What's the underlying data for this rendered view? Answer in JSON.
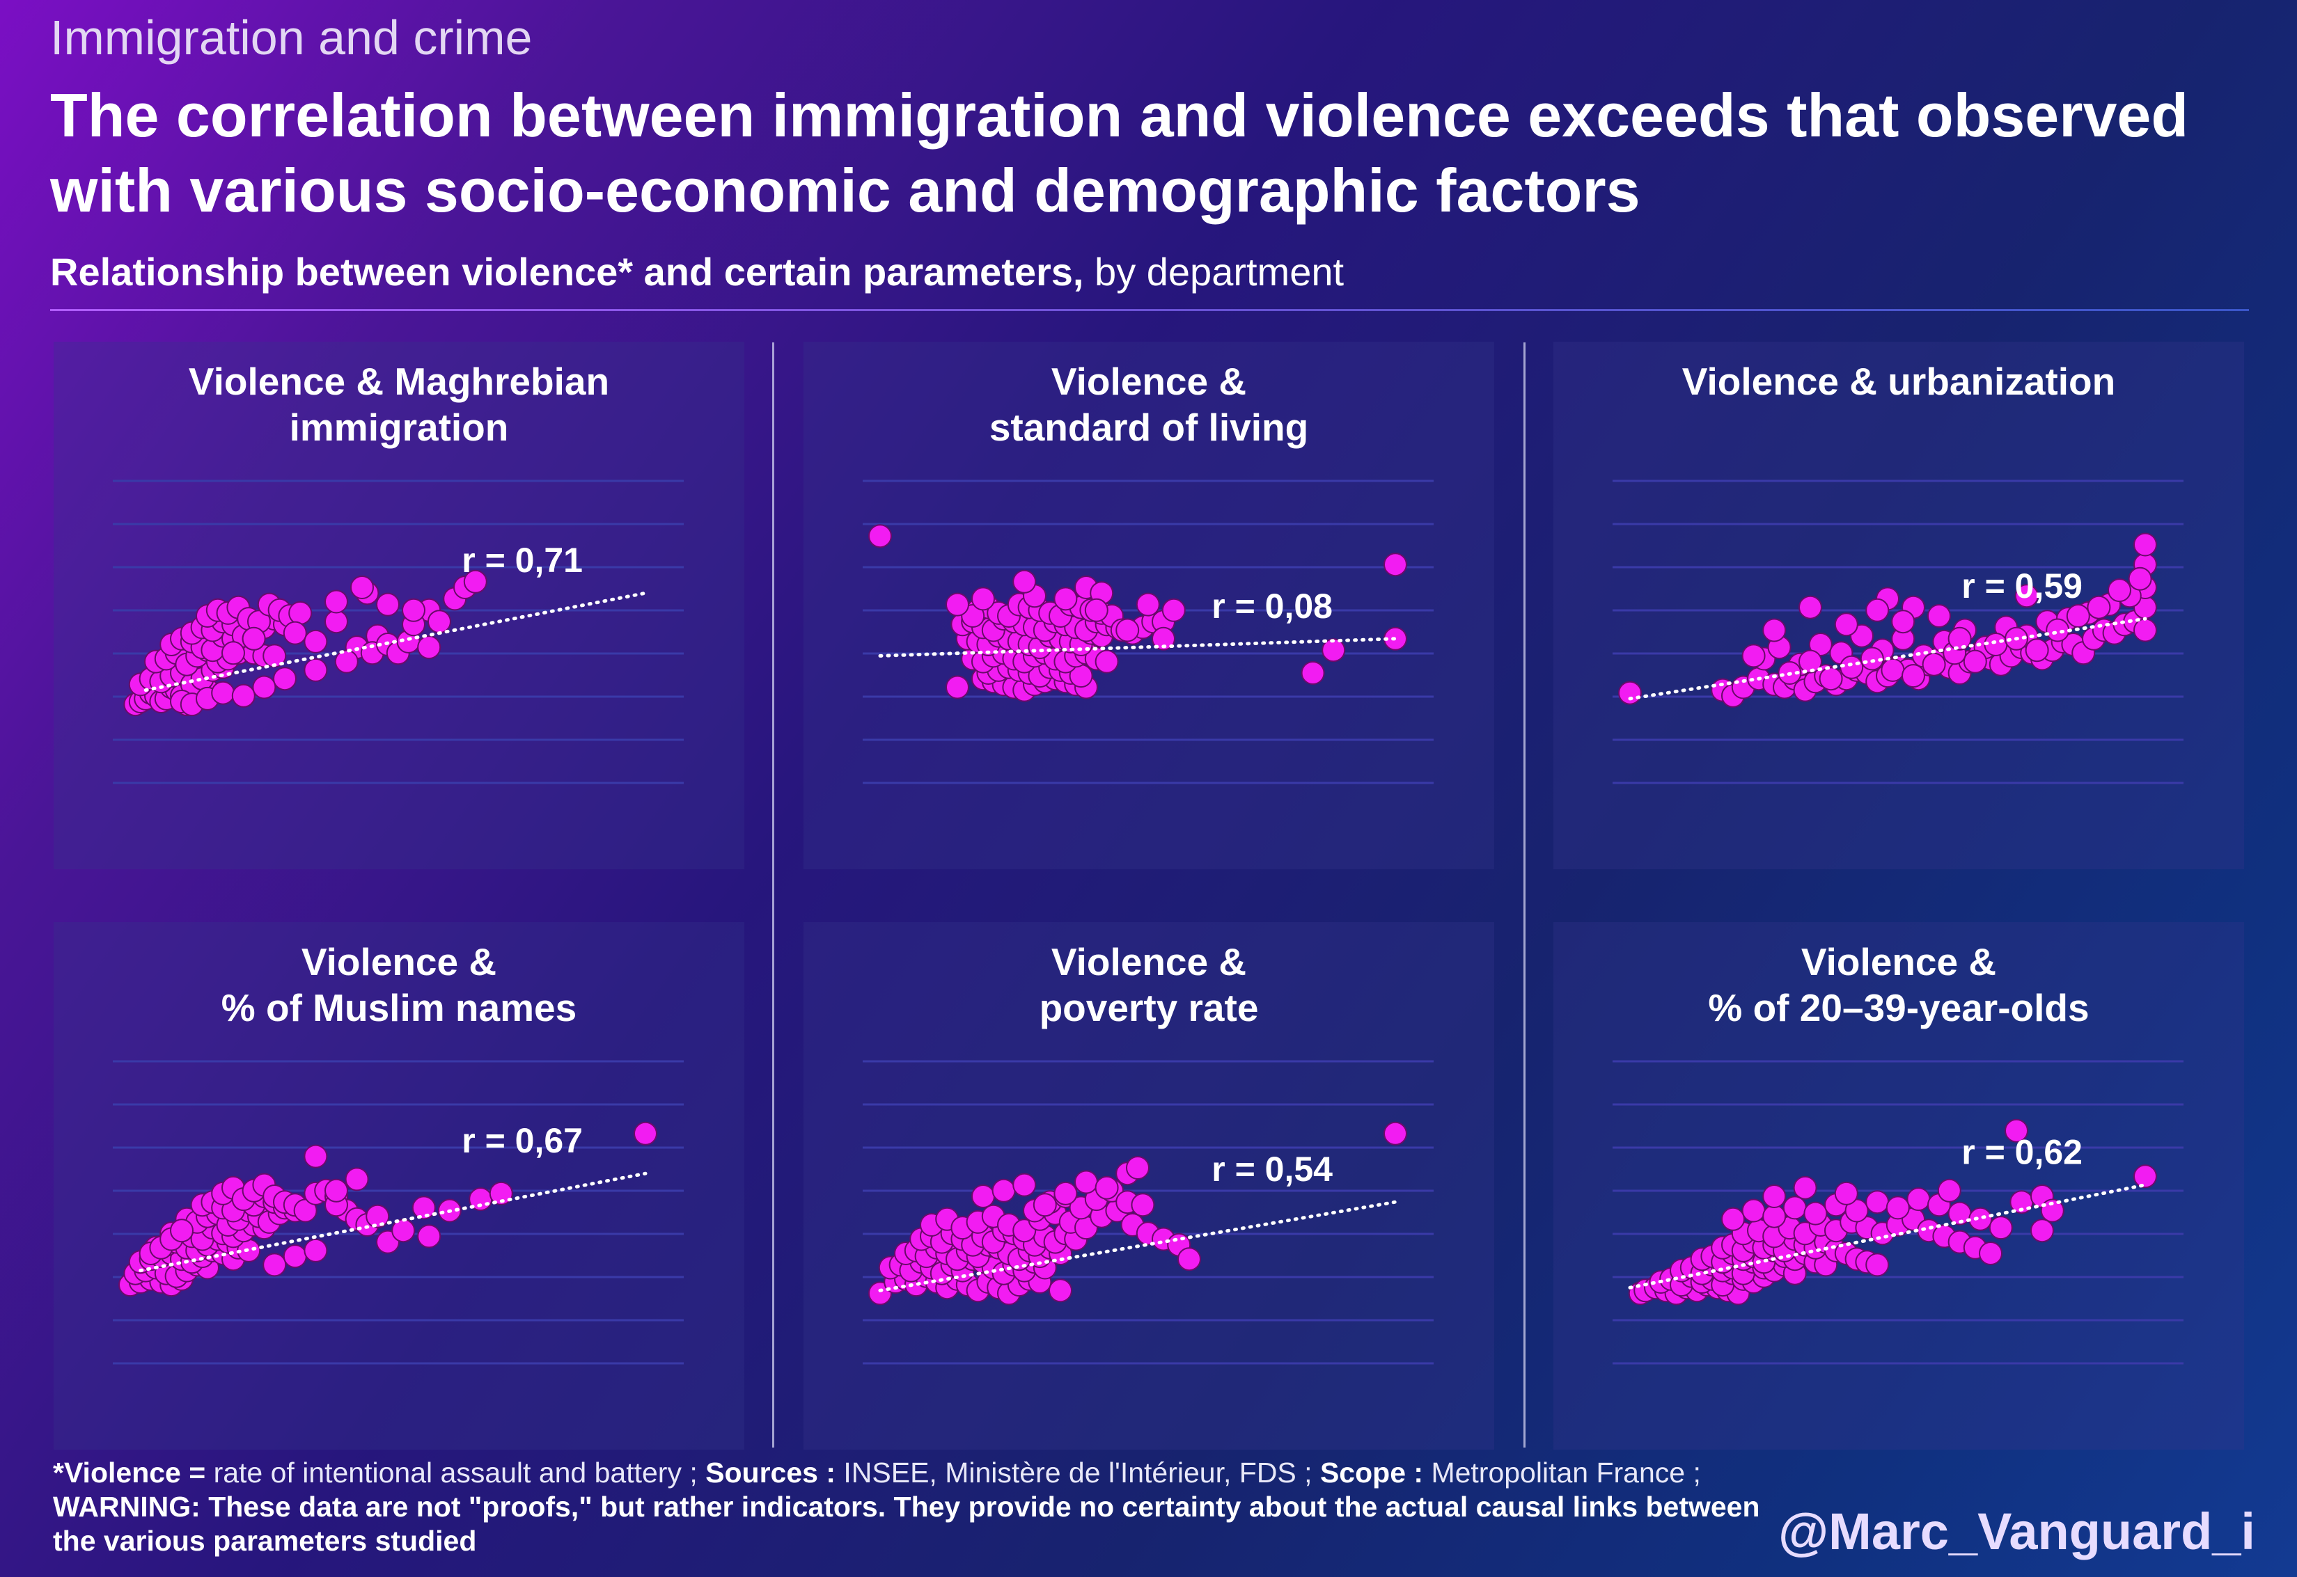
{
  "header": {
    "kicker": "Immigration and crime",
    "title": "The correlation between immigration and violence exceeds that observed with various socio-economic and demographic factors",
    "subtitle_bold": "Relationship between violence* and certain parameters,",
    "subtitle_rest": " by department"
  },
  "colors": {
    "point": "#f21cf2",
    "point_stroke": "#6a0a6a",
    "grid": "#3a3aa8",
    "trend": "#ffffff"
  },
  "chart_data": [
    {
      "type": "scatter",
      "title_line1": "Violence & Maghrebian",
      "title_line2": "immigration",
      "r_label": "r = 0,71",
      "xlim": [
        0,
        100
      ],
      "ylim": [
        0,
        100
      ],
      "trend": [
        [
          3,
          34
        ],
        [
          100,
          68
        ]
      ],
      "x": [
        1,
        2,
        3,
        4,
        5,
        6,
        7,
        8,
        9,
        10,
        11,
        12,
        13,
        14,
        15,
        2,
        4,
        6,
        8,
        10,
        12,
        14,
        16,
        18,
        5,
        7,
        9,
        11,
        13,
        15,
        17,
        19,
        21,
        23,
        8,
        10,
        12,
        14,
        16,
        18,
        20,
        22,
        24,
        26,
        12,
        14,
        16,
        18,
        20,
        22,
        24,
        26,
        28,
        30,
        15,
        17,
        19,
        21,
        23,
        25,
        27,
        29,
        31,
        33,
        20,
        24,
        28,
        32,
        36,
        40,
        44,
        48,
        10,
        12,
        15,
        18,
        22,
        26,
        30,
        36,
        42,
        47,
        50,
        52,
        54,
        58,
        58,
        60,
        63,
        65,
        67,
        40,
        46,
        50,
        45,
        55,
        55
      ],
      "y": [
        29,
        30,
        31,
        33,
        32,
        30,
        31,
        35,
        34,
        32,
        29,
        30,
        33,
        35,
        34,
        36,
        38,
        37,
        39,
        40,
        36,
        38,
        41,
        42,
        44,
        45,
        47,
        43,
        46,
        48,
        44,
        45,
        47,
        49,
        50,
        52,
        51,
        49,
        48,
        53,
        52,
        50,
        47,
        46,
        54,
        56,
        55,
        58,
        57,
        53,
        52,
        56,
        59,
        57,
        60,
        62,
        61,
        63,
        59,
        58,
        64,
        62,
        60,
        61,
        47,
        52,
        46,
        54,
        51,
        58,
        49,
        53,
        30,
        29,
        31,
        33,
        32,
        35,
        38,
        41,
        44,
        47,
        50,
        47,
        51,
        49,
        62,
        58,
        66,
        70,
        72,
        65,
        68,
        64,
        70,
        57,
        62
      ]
    },
    {
      "type": "scatter",
      "title_line1": "Violence &",
      "title_line2": "standard of living",
      "r_label": "r = 0,08",
      "xlim": [
        0,
        100
      ],
      "ylim": [
        0,
        100
      ],
      "trend": [
        [
          0,
          46
        ],
        [
          100,
          52
        ]
      ],
      "x": [
        0,
        100,
        100,
        88,
        84,
        20,
        22,
        24,
        26,
        28,
        30,
        32,
        34,
        36,
        38,
        40,
        21,
        23,
        25,
        27,
        29,
        31,
        33,
        35,
        37,
        39,
        18,
        20,
        22,
        24,
        26,
        28,
        30,
        32,
        34,
        36,
        38,
        40,
        42,
        44,
        17,
        19,
        21,
        23,
        25,
        27,
        29,
        31,
        33,
        35,
        37,
        39,
        41,
        43,
        16,
        18,
        20,
        22,
        24,
        26,
        28,
        30,
        32,
        34,
        36,
        38,
        40,
        42,
        44,
        46,
        19,
        21,
        23,
        25,
        27,
        29,
        31,
        33,
        35,
        37,
        39,
        41,
        43,
        45,
        47,
        49,
        51,
        53,
        55,
        57,
        55,
        15,
        18,
        20,
        40,
        43,
        52,
        15,
        30,
        36,
        42,
        28,
        48
      ],
      "y": [
        88,
        78,
        52,
        48,
        40,
        38,
        37,
        36,
        35,
        34,
        36,
        37,
        38,
        37,
        36,
        35,
        40,
        41,
        42,
        41,
        40,
        39,
        42,
        41,
        40,
        39,
        45,
        44,
        46,
        47,
        45,
        44,
        46,
        47,
        45,
        44,
        46,
        47,
        45,
        44,
        52,
        51,
        50,
        53,
        52,
        51,
        50,
        49,
        53,
        52,
        51,
        50,
        54,
        53,
        57,
        58,
        56,
        55,
        59,
        58,
        57,
        56,
        55,
        58,
        57,
        56,
        55,
        58,
        57,
        56,
        62,
        63,
        61,
        60,
        64,
        63,
        62,
        61,
        60,
        64,
        63,
        62,
        61,
        60,
        55,
        54,
        56,
        58,
        58,
        62,
        52,
        35,
        60,
        66,
        70,
        68,
        64,
        64,
        67,
        66,
        62,
        72,
        55
      ]
    },
    {
      "type": "scatter",
      "title_line1": "Violence & urbanization",
      "title_line2": "",
      "r_label": "r = 0,59",
      "xlim": [
        0,
        100
      ],
      "ylim": [
        0,
        100
      ],
      "trend": [
        [
          0,
          31
        ],
        [
          100,
          59
        ]
      ],
      "x": [
        0,
        18,
        20,
        22,
        25,
        28,
        30,
        32,
        34,
        36,
        38,
        40,
        42,
        44,
        46,
        48,
        50,
        52,
        54,
        56,
        58,
        60,
        62,
        64,
        66,
        68,
        70,
        72,
        74,
        76,
        78,
        80,
        82,
        84,
        86,
        88,
        90,
        92,
        94,
        96,
        98,
        100,
        100,
        100,
        100,
        100,
        26,
        29,
        33,
        37,
        41,
        45,
        49,
        53,
        57,
        61,
        65,
        69,
        73,
        77,
        81,
        85,
        89,
        93,
        97,
        31,
        35,
        39,
        43,
        47,
        51,
        55,
        59,
        63,
        67,
        71,
        75,
        79,
        83,
        87,
        91,
        95,
        99,
        24,
        28,
        35,
        42,
        50,
        48,
        55,
        60,
        64,
        53,
        77
      ],
      "y": [
        33,
        34,
        32,
        35,
        38,
        36,
        35,
        38,
        34,
        37,
        39,
        36,
        38,
        41,
        40,
        37,
        39,
        42,
        41,
        38,
        43,
        45,
        42,
        40,
        44,
        47,
        45,
        43,
        46,
        49,
        47,
        45,
        48,
        51,
        50,
        47,
        52,
        55,
        54,
        57,
        58,
        55,
        63,
        70,
        78,
        85,
        45,
        49,
        43,
        50,
        47,
        53,
        48,
        52,
        46,
        51,
        55,
        49,
        56,
        53,
        58,
        59,
        61,
        64,
        67,
        40,
        44,
        38,
        42,
        45,
        41,
        39,
        43,
        47,
        44,
        50,
        52,
        48,
        55,
        60,
        63,
        69,
        73,
        46,
        55,
        63,
        57,
        66,
        62,
        63,
        60,
        52,
        58,
        67
      ]
    },
    {
      "type": "scatter",
      "title_line1": "Violence &",
      "title_line2": "% of Muslim names",
      "r_label": "r = 0,67",
      "xlim": [
        0,
        100
      ],
      "ylim": [
        0,
        100
      ],
      "trend": [
        [
          2,
          34
        ],
        [
          100,
          68
        ]
      ],
      "x": [
        0,
        2,
        4,
        6,
        8,
        10,
        1,
        3,
        5,
        7,
        9,
        11,
        13,
        15,
        2,
        4,
        6,
        8,
        10,
        12,
        14,
        16,
        18,
        20,
        5,
        7,
        9,
        11,
        13,
        15,
        17,
        19,
        21,
        23,
        8,
        10,
        12,
        14,
        16,
        18,
        20,
        22,
        24,
        26,
        11,
        13,
        15,
        17,
        19,
        21,
        23,
        25,
        27,
        29,
        14,
        16,
        18,
        20,
        22,
        24,
        26,
        28,
        30,
        32,
        18,
        20,
        22,
        24,
        26,
        28,
        30,
        32,
        34,
        36,
        38,
        40,
        42,
        44,
        46,
        48,
        4,
        6,
        8,
        10,
        28,
        32,
        36,
        40,
        50,
        40,
        44,
        36,
        53,
        58,
        57,
        62,
        68,
        72,
        100
      ],
      "y": [
        29,
        30,
        31,
        30,
        29,
        31,
        33,
        34,
        35,
        33,
        32,
        34,
        36,
        35,
        37,
        38,
        39,
        40,
        38,
        37,
        39,
        41,
        40,
        38,
        42,
        43,
        44,
        42,
        41,
        43,
        45,
        44,
        42,
        41,
        47,
        48,
        46,
        45,
        49,
        47,
        46,
        48,
        50,
        49,
        52,
        51,
        53,
        54,
        50,
        52,
        55,
        53,
        51,
        54,
        57,
        58,
        56,
        55,
        59,
        57,
        60,
        58,
        56,
        55,
        61,
        63,
        59,
        62,
        64,
        60,
        58,
        57,
        55,
        61,
        62,
        60,
        55,
        52,
        50,
        53,
        40,
        42,
        45,
        48,
        36,
        39,
        41,
        57,
        44,
        62,
        66,
        74,
        48,
        46,
        56,
        55,
        59,
        61,
        82
      ]
    },
    {
      "type": "scatter",
      "title_line1": "Violence &",
      "title_line2": "poverty rate",
      "r_label": "r = 0,54",
      "xlim": [
        0,
        100
      ],
      "ylim": [
        0,
        100
      ],
      "trend": [
        [
          0,
          27
        ],
        [
          100,
          58
        ]
      ],
      "x": [
        0,
        3,
        5,
        7,
        9,
        11,
        13,
        15,
        17,
        19,
        21,
        23,
        25,
        27,
        29,
        31,
        2,
        4,
        6,
        8,
        10,
        12,
        14,
        16,
        18,
        20,
        22,
        24,
        26,
        28,
        30,
        32,
        5,
        7,
        9,
        11,
        13,
        15,
        17,
        19,
        21,
        23,
        25,
        27,
        29,
        31,
        33,
        35,
        8,
        10,
        12,
        14,
        16,
        18,
        20,
        22,
        24,
        26,
        28,
        30,
        32,
        34,
        36,
        38,
        10,
        13,
        16,
        19,
        22,
        25,
        28,
        31,
        34,
        37,
        40,
        43,
        46,
        49,
        52,
        55,
        58,
        30,
        33,
        36,
        39,
        42,
        45,
        48,
        51,
        20,
        24,
        28,
        32,
        36,
        40,
        44,
        48,
        60,
        35,
        50,
        100
      ],
      "y": [
        26,
        30,
        31,
        29,
        32,
        30,
        28,
        31,
        29,
        27,
        30,
        28,
        26,
        29,
        31,
        30,
        35,
        36,
        34,
        37,
        35,
        33,
        36,
        34,
        38,
        37,
        35,
        33,
        36,
        34,
        37,
        35,
        40,
        41,
        39,
        42,
        40,
        38,
        41,
        39,
        43,
        42,
        40,
        38,
        41,
        39,
        42,
        40,
        45,
        46,
        44,
        47,
        45,
        43,
        46,
        44,
        48,
        47,
        45,
        43,
        46,
        44,
        47,
        45,
        50,
        52,
        49,
        51,
        53,
        50,
        48,
        52,
        54,
        51,
        49,
        53,
        55,
        50,
        47,
        45,
        43,
        55,
        58,
        60,
        56,
        59,
        62,
        58,
        57,
        60,
        62,
        64,
        57,
        61,
        65,
        63,
        68,
        38,
        27,
        70,
        82
      ]
    },
    {
      "type": "scatter",
      "title_line1": "Violence &",
      "title_line2": "% of 20–39-year-olds",
      "r_label": "r = 0,62",
      "xlim": [
        0,
        100
      ],
      "ylim": [
        0,
        100
      ],
      "trend": [
        [
          0,
          28
        ],
        [
          100,
          64
        ]
      ],
      "x": [
        2,
        3,
        5,
        7,
        9,
        11,
        13,
        15,
        17,
        19,
        21,
        6,
        8,
        10,
        12,
        14,
        16,
        18,
        20,
        22,
        24,
        26,
        10,
        12,
        14,
        16,
        18,
        20,
        22,
        24,
        26,
        28,
        30,
        32,
        14,
        16,
        18,
        20,
        22,
        24,
        26,
        28,
        30,
        32,
        34,
        36,
        38,
        18,
        20,
        22,
        24,
        26,
        28,
        30,
        32,
        34,
        36,
        38,
        40,
        42,
        44,
        46,
        48,
        22,
        25,
        28,
        31,
        34,
        37,
        40,
        43,
        46,
        49,
        52,
        55,
        58,
        61,
        64,
        67,
        70,
        20,
        24,
        28,
        32,
        36,
        40,
        44,
        48,
        52,
        56,
        60,
        64,
        68,
        72,
        76,
        80,
        28,
        34,
        42,
        62,
        80,
        75,
        82,
        100
      ],
      "y": [
        26,
        27,
        28,
        27,
        26,
        28,
        27,
        29,
        28,
        27,
        26,
        30,
        31,
        29,
        32,
        30,
        31,
        29,
        33,
        31,
        30,
        32,
        34,
        35,
        33,
        36,
        34,
        35,
        33,
        37,
        35,
        34,
        36,
        33,
        38,
        39,
        37,
        40,
        38,
        39,
        37,
        41,
        39,
        38,
        40,
        37,
        36,
        42,
        43,
        41,
        44,
        42,
        43,
        41,
        45,
        43,
        42,
        44,
        41,
        40,
        38,
        37,
        36,
        47,
        48,
        46,
        49,
        47,
        50,
        48,
        51,
        49,
        47,
        50,
        52,
        48,
        46,
        44,
        42,
        40,
        52,
        55,
        53,
        56,
        54,
        57,
        55,
        58,
        56,
        59,
        57,
        54,
        52,
        49,
        58,
        60,
        60,
        63,
        61,
        62,
        48,
        83,
        55,
        67
      ]
    }
  ],
  "footer": {
    "l1_b1": "*Violence =",
    "l1_t1": " rate of intentional assault and battery ; ",
    "l1_b2": "Sources :",
    "l1_t2": " INSEE, Ministère de l'Intérieur, FDS ; ",
    "l1_b3": "Scope :",
    "l1_t3": " Metropolitan France ;",
    "l2": "WARNING: These data are not \"proofs,\" but rather indicators. They provide no certainty about the actual causal links between",
    "l3": "the various parameters studied"
  },
  "handle": "@Marc_Vanguard_i"
}
